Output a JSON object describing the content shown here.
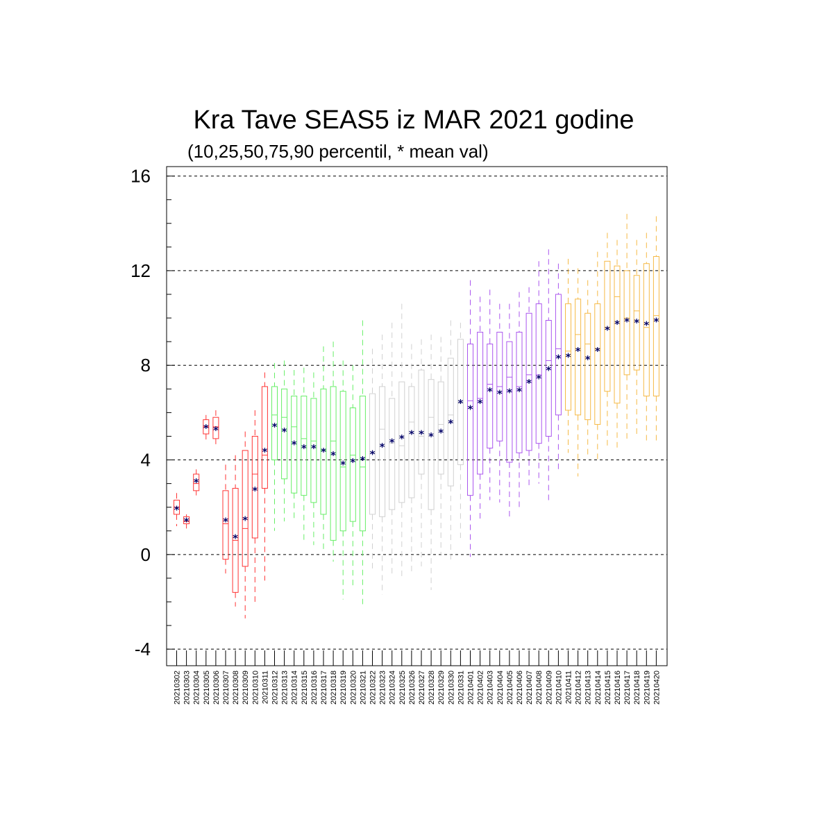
{
  "chart_data": {
    "type": "boxplot",
    "title": "Kra Tave SEAS5 iz MAR 2021 godine",
    "subtitle": "(10,25,50,75,90 percentil, * mean val)",
    "ylim": [
      -4.7,
      16.4
    ],
    "yticks": [
      -4,
      0,
      4,
      8,
      12,
      16
    ],
    "grid": "dashed horizontal at major y ticks",
    "colors": {
      "red": "#ff3333",
      "green": "#66ee66",
      "gray": "#d0d0d0",
      "purple": "#aa55ee",
      "orange": "#f5b945",
      "mean": "#000066"
    },
    "dates": [
      "20210302",
      "20210303",
      "20210304",
      "20210305",
      "20210306",
      "20210307",
      "20210308",
      "20210309",
      "20210310",
      "20210311",
      "20210312",
      "20210313",
      "20210314",
      "20210315",
      "20210316",
      "20210317",
      "20210318",
      "20210319",
      "20210320",
      "20210321",
      "20210322",
      "20210323",
      "20210324",
      "20210325",
      "20210326",
      "20210327",
      "20210328",
      "20210329",
      "20210330",
      "20210331",
      "20210401",
      "20210402",
      "20210403",
      "20210404",
      "20210405",
      "20210406",
      "20210407",
      "20210408",
      "20210409",
      "20210410",
      "20210411",
      "20210412",
      "20210413",
      "20210414",
      "20210415",
      "20210416",
      "20210417",
      "20210418",
      "20210419",
      "20210420"
    ],
    "series": [
      {
        "color": "red",
        "p10": 1.2,
        "p25": 1.7,
        "p50": 2.0,
        "p75": 2.3,
        "p90": 2.6,
        "mean": 1.95
      },
      {
        "color": "red",
        "p10": 1.1,
        "p25": 1.3,
        "p50": 1.4,
        "p75": 1.6,
        "p90": 1.7,
        "mean": 1.45
      },
      {
        "color": "red",
        "p10": 2.5,
        "p25": 2.7,
        "p50": 3.0,
        "p75": 3.4,
        "p90": 3.6,
        "mean": 3.1
      },
      {
        "color": "red",
        "p10": 4.8,
        "p25": 5.1,
        "p50": 5.4,
        "p75": 5.7,
        "p90": 5.9,
        "mean": 5.4
      },
      {
        "color": "red",
        "p10": 4.5,
        "p25": 4.9,
        "p50": 5.4,
        "p75": 5.8,
        "p90": 6.1,
        "mean": 5.3
      },
      {
        "color": "red",
        "p10": -0.8,
        "p25": -0.2,
        "p50": 1.3,
        "p75": 2.7,
        "p90": 3.8,
        "mean": 1.45
      },
      {
        "color": "red",
        "p10": -2.2,
        "p25": -1.6,
        "p50": 0.6,
        "p75": 2.8,
        "p90": 4.2,
        "mean": 0.75
      },
      {
        "color": "red",
        "p10": -2.7,
        "p25": -0.5,
        "p50": 1.1,
        "p75": 4.4,
        "p90": 5.2,
        "mean": 1.5
      },
      {
        "color": "red",
        "p10": -2.1,
        "p25": 0.7,
        "p50": 3.4,
        "p75": 5.0,
        "p90": 6.1,
        "mean": 2.75
      },
      {
        "color": "red",
        "p10": -1.1,
        "p25": 2.8,
        "p50": 4.2,
        "p75": 7.1,
        "p90": 7.7,
        "mean": 4.4
      },
      {
        "color": "green",
        "p10": 1.0,
        "p25": 4.0,
        "p50": 5.9,
        "p75": 7.1,
        "p90": 8.1,
        "mean": 5.45
      },
      {
        "color": "green",
        "p10": 1.4,
        "p25": 3.2,
        "p50": 5.8,
        "p75": 7.0,
        "p90": 8.2,
        "mean": 5.25
      },
      {
        "color": "green",
        "p10": 1.5,
        "p25": 2.6,
        "p50": 5.4,
        "p75": 6.7,
        "p90": 7.8,
        "mean": 4.7
      },
      {
        "color": "green",
        "p10": 0.5,
        "p25": 2.5,
        "p50": 4.9,
        "p75": 6.7,
        "p90": 7.9,
        "mean": 4.55
      },
      {
        "color": "green",
        "p10": 0.4,
        "p25": 2.2,
        "p50": 4.8,
        "p75": 6.6,
        "p90": 7.7,
        "mean": 4.55
      },
      {
        "color": "green",
        "p10": 0.2,
        "p25": 1.7,
        "p50": 4.4,
        "p75": 7.0,
        "p90": 8.8,
        "mean": 4.4
      },
      {
        "color": "green",
        "p10": -0.3,
        "p25": 0.6,
        "p50": 4.8,
        "p75": 7.1,
        "p90": 9.0,
        "mean": 4.25
      },
      {
        "color": "green",
        "p10": -1.9,
        "p25": 1.0,
        "p50": 3.7,
        "p75": 6.9,
        "p90": 8.2,
        "mean": 3.85
      },
      {
        "color": "green",
        "p10": -1.3,
        "p25": 1.4,
        "p50": 4.2,
        "p75": 6.2,
        "p90": 8.0,
        "mean": 3.95
      },
      {
        "color": "green",
        "p10": -2.1,
        "p25": 1.0,
        "p50": 3.7,
        "p75": 6.7,
        "p90": 9.9,
        "mean": 4.05
      },
      {
        "color": "gray",
        "p10": -0.6,
        "p25": 1.7,
        "p50": 4.3,
        "p75": 6.8,
        "p90": 8.7,
        "mean": 4.3
      },
      {
        "color": "gray",
        "p10": -1.7,
        "p25": 1.6,
        "p50": 5.3,
        "p75": 7.1,
        "p90": 9.3,
        "mean": 4.6
      },
      {
        "color": "gray",
        "p10": -0.8,
        "p25": 1.9,
        "p50": 4.7,
        "p75": 6.6,
        "p90": 9.8,
        "mean": 4.8
      },
      {
        "color": "gray",
        "p10": -1.0,
        "p25": 2.2,
        "p50": 4.6,
        "p75": 7.3,
        "p90": 10.6,
        "mean": 4.95
      },
      {
        "color": "gray",
        "p10": -0.8,
        "p25": 2.4,
        "p50": 5.6,
        "p75": 7.1,
        "p90": 8.9,
        "mean": 5.15
      },
      {
        "color": "gray",
        "p10": -0.5,
        "p25": 3.4,
        "p50": 5.0,
        "p75": 7.8,
        "p90": 9.1,
        "mean": 5.15
      },
      {
        "color": "gray",
        "p10": -1.5,
        "p25": 1.9,
        "p50": 5.8,
        "p75": 7.4,
        "p90": 9.3,
        "mean": 5.05
      },
      {
        "color": "gray",
        "p10": 0.0,
        "p25": 3.4,
        "p50": 5.5,
        "p75": 7.3,
        "p90": 9.2,
        "mean": 5.2
      },
      {
        "color": "gray",
        "p10": -0.3,
        "p25": 2.9,
        "p50": 5.9,
        "p75": 8.3,
        "p90": 9.9,
        "mean": 5.6
      },
      {
        "color": "gray",
        "p10": 0.7,
        "p25": 3.8,
        "p50": 6.4,
        "p75": 9.1,
        "p90": 9.8,
        "mean": 6.45
      },
      {
        "color": "purple",
        "p10": -0.1,
        "p25": 2.5,
        "p50": 6.5,
        "p75": 8.9,
        "p90": 11.6,
        "mean": 6.2
      },
      {
        "color": "purple",
        "p10": 1.4,
        "p25": 3.4,
        "p50": 6.6,
        "p75": 9.4,
        "p90": 10.9,
        "mean": 6.45
      },
      {
        "color": "purple",
        "p10": 2.3,
        "p25": 4.5,
        "p50": 7.2,
        "p75": 8.9,
        "p90": 11.2,
        "mean": 6.95
      },
      {
        "color": "purple",
        "p10": 2.2,
        "p25": 4.8,
        "p50": 7.1,
        "p75": 9.4,
        "p90": 10.6,
        "mean": 6.85
      },
      {
        "color": "purple",
        "p10": 1.5,
        "p25": 3.9,
        "p50": 7.5,
        "p75": 9.0,
        "p90": 10.6,
        "mean": 6.9
      },
      {
        "color": "purple",
        "p10": 1.9,
        "p25": 4.3,
        "p50": 7.1,
        "p75": 9.4,
        "p90": 11.1,
        "mean": 6.95
      },
      {
        "color": "purple",
        "p10": 2.8,
        "p25": 4.4,
        "p50": 7.6,
        "p75": 10.2,
        "p90": 11.3,
        "mean": 7.3
      },
      {
        "color": "purple",
        "p10": 3.0,
        "p25": 4.7,
        "p50": 7.6,
        "p75": 10.6,
        "p90": 12.4,
        "mean": 7.5
      },
      {
        "color": "purple",
        "p10": 2.2,
        "p25": 5.0,
        "p50": 8.2,
        "p75": 9.9,
        "p90": 12.9,
        "mean": 7.85
      },
      {
        "color": "purple",
        "p10": 3.6,
        "p25": 5.9,
        "p50": 8.7,
        "p75": 11.0,
        "p90": 12.3,
        "mean": 8.35
      },
      {
        "color": "orange",
        "p10": 4.3,
        "p25": 6.1,
        "p50": 8.6,
        "p75": 10.6,
        "p90": 12.5,
        "mean": 8.4
      },
      {
        "color": "orange",
        "p10": 3.3,
        "p25": 5.9,
        "p50": 9.3,
        "p75": 10.8,
        "p90": 12.1,
        "mean": 8.65
      },
      {
        "color": "orange",
        "p10": 4.2,
        "p25": 5.7,
        "p50": 8.9,
        "p75": 10.2,
        "p90": 11.6,
        "mean": 8.3
      },
      {
        "color": "orange",
        "p10": 4.0,
        "p25": 5.5,
        "p50": 8.7,
        "p75": 10.6,
        "p90": 12.8,
        "mean": 8.65
      },
      {
        "color": "orange",
        "p10": 4.5,
        "p25": 6.9,
        "p50": 9.6,
        "p75": 12.4,
        "p90": 13.6,
        "mean": 9.55
      },
      {
        "color": "orange",
        "p10": 4.4,
        "p25": 6.4,
        "p50": 10.9,
        "p75": 12.2,
        "p90": 13.3,
        "mean": 9.8
      },
      {
        "color": "orange",
        "p10": 4.8,
        "p25": 7.6,
        "p50": 10.0,
        "p75": 12.0,
        "p90": 14.4,
        "mean": 9.9
      },
      {
        "color": "orange",
        "p10": 5.0,
        "p25": 7.8,
        "p50": 10.3,
        "p75": 11.8,
        "p90": 13.3,
        "mean": 9.85
      },
      {
        "color": "orange",
        "p10": 4.7,
        "p25": 6.7,
        "p50": 9.6,
        "p75": 12.3,
        "p90": 13.6,
        "mean": 9.75
      },
      {
        "color": "orange",
        "p10": 4.7,
        "p25": 6.7,
        "p50": 10.1,
        "p75": 12.6,
        "p90": 14.3,
        "mean": 9.9
      }
    ]
  }
}
